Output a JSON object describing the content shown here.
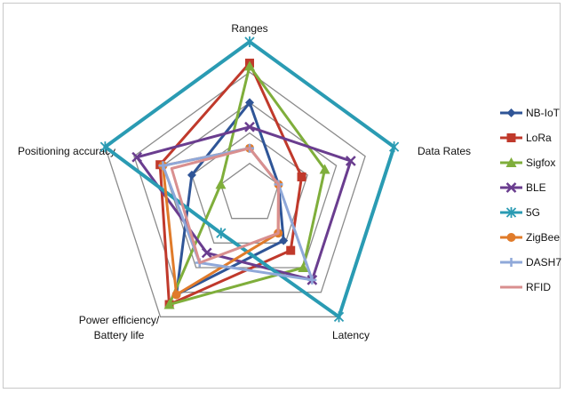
{
  "chart_data": {
    "type": "radar",
    "axes": [
      "Ranges",
      "Data Rates",
      "Latency",
      "Power efficiency/\nBattery life",
      "Positioning accuracy"
    ],
    "rmax": 5,
    "grid_levels": [
      1,
      2,
      3,
      4,
      5
    ],
    "legend_position": "right",
    "series": [
      {
        "name": "NB-IoT",
        "color": "#2f5597",
        "marker": "diamond",
        "values": [
          3.0,
          1.0,
          1.9,
          4.1,
          2.0
        ]
      },
      {
        "name": "LoRa",
        "color": "#c0392b",
        "marker": "square",
        "values": [
          4.3,
          1.8,
          2.3,
          4.5,
          3.1
        ]
      },
      {
        "name": "Sigfox",
        "color": "#7fae3b",
        "marker": "triangle",
        "values": [
          4.2,
          2.6,
          3.0,
          4.5,
          1.0
        ]
      },
      {
        "name": "BLE",
        "color": "#6a3d8f",
        "marker": "x",
        "values": [
          2.2,
          3.5,
          3.5,
          2.4,
          3.9
        ]
      },
      {
        "name": "5G",
        "color": "#2a9bb3",
        "marker": "star",
        "values": [
          5.0,
          5.0,
          5.0,
          1.6,
          5.0
        ]
      },
      {
        "name": "ZigBee",
        "color": "#e07b2a",
        "marker": "circle",
        "values": [
          1.5,
          1.0,
          1.6,
          4.1,
          3.0
        ]
      },
      {
        "name": "DASH7",
        "color": "#8fa8d9",
        "marker": "plus",
        "values": [
          1.5,
          1.0,
          3.5,
          2.8,
          3.0
        ]
      },
      {
        "name": "RFID",
        "color": "#d98f8f",
        "marker": "none",
        "values": [
          1.5,
          1.0,
          1.6,
          2.8,
          2.7
        ]
      }
    ]
  }
}
